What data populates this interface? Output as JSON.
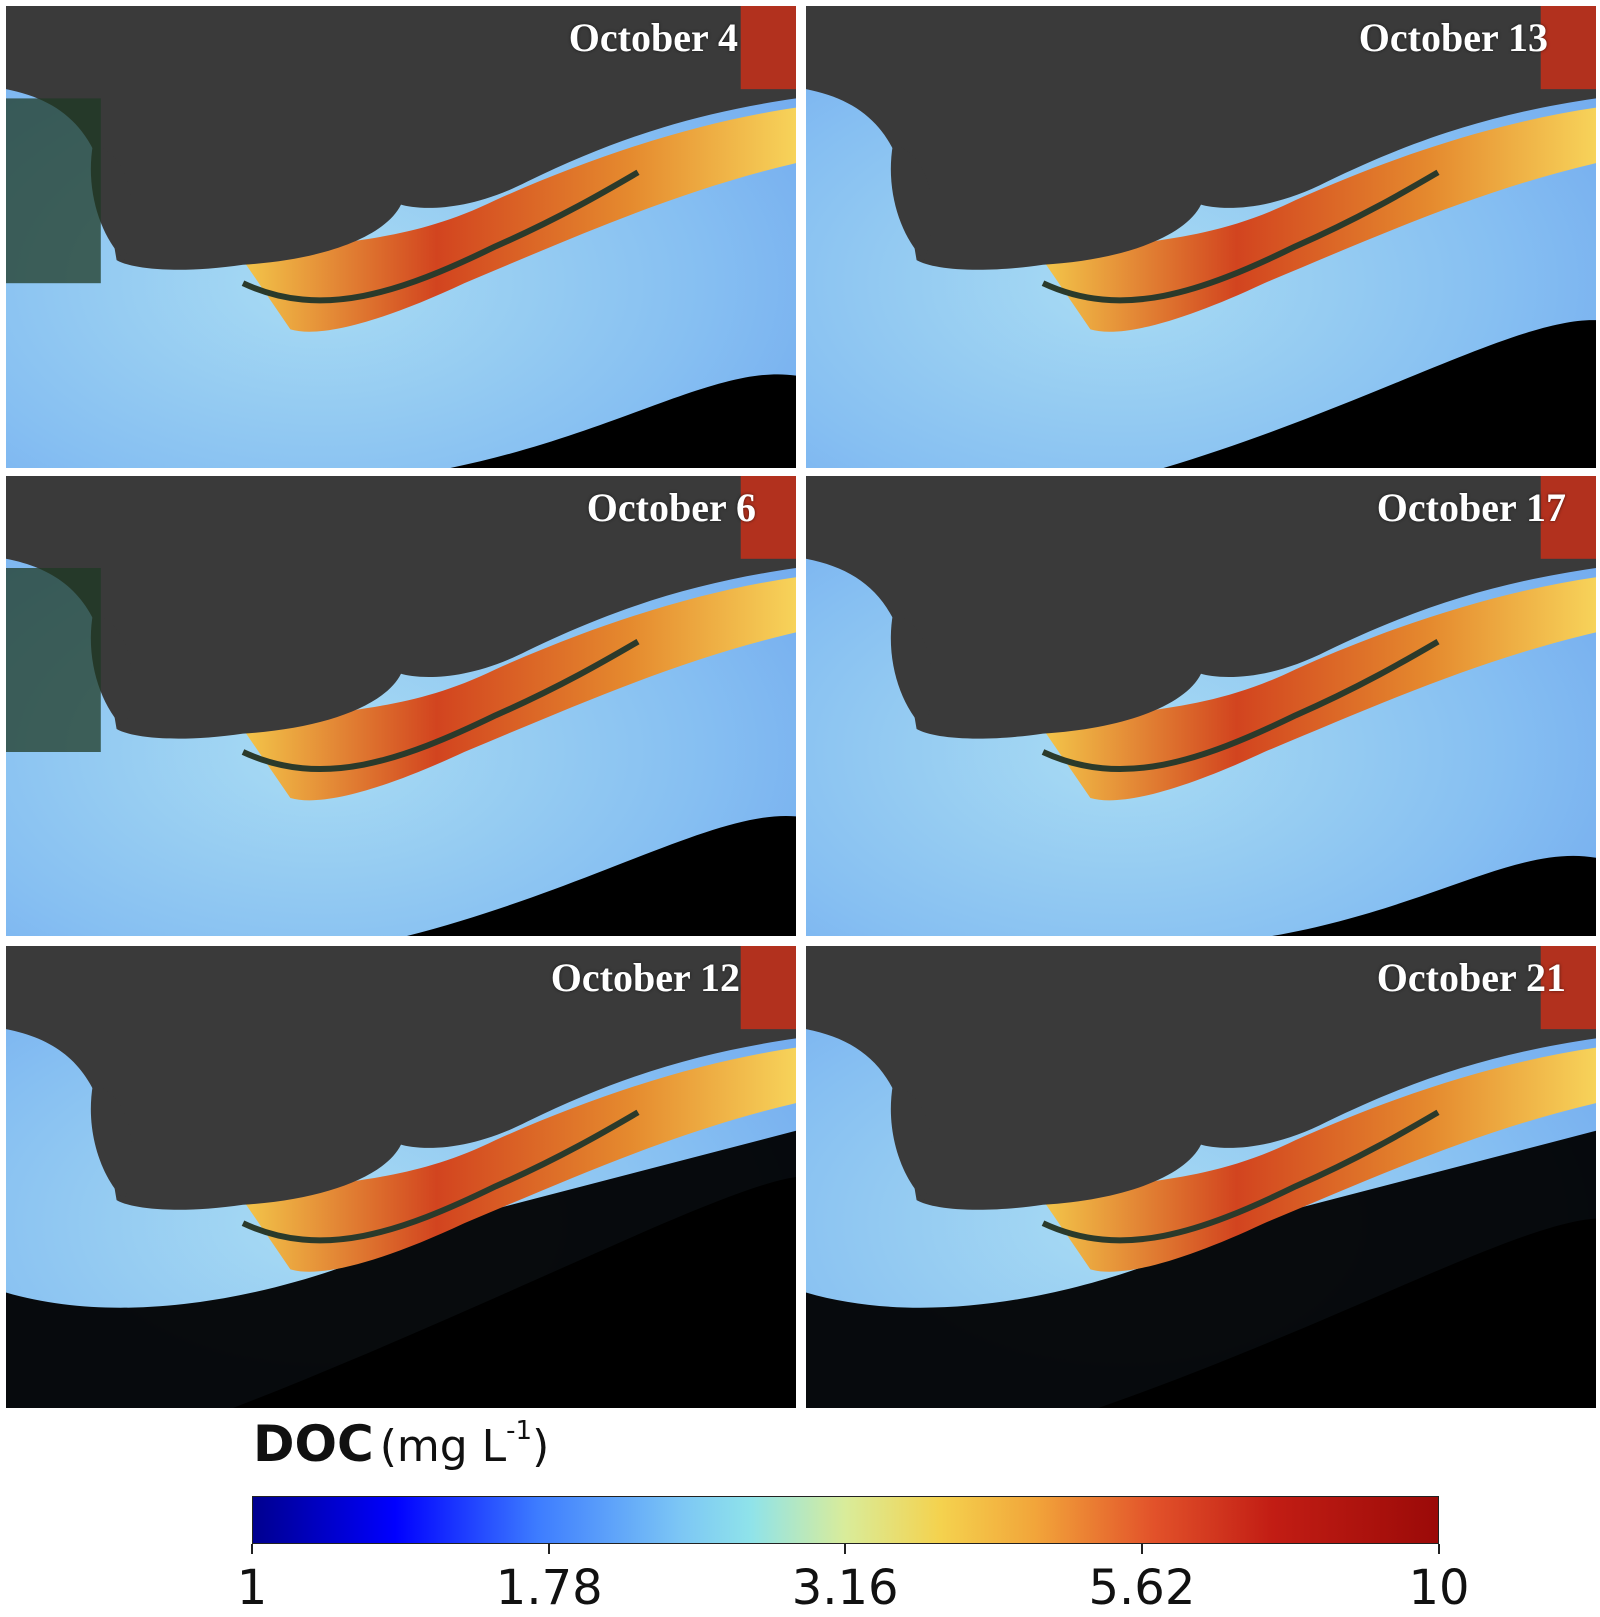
{
  "panels": [
    {
      "label": "October 4"
    },
    {
      "label": "October 13"
    },
    {
      "label": "October 6"
    },
    {
      "label": "October 17"
    },
    {
      "label": "October 12"
    },
    {
      "label": "October 21"
    }
  ],
  "colorbar": {
    "title": "DOC",
    "unit_prefix": "(mg L",
    "unit_sup": "-1",
    "unit_suffix": ")",
    "ticks": [
      "1",
      "1.78",
      "3.16",
      "5.62",
      "10"
    ],
    "scale": "log",
    "range": [
      1,
      10
    ],
    "colormap": "jet"
  },
  "colors": {
    "land": "#3a3a3a",
    "no_data": "#000000",
    "water_low": "#7fb4f0",
    "doc_high": "#b8150d"
  }
}
